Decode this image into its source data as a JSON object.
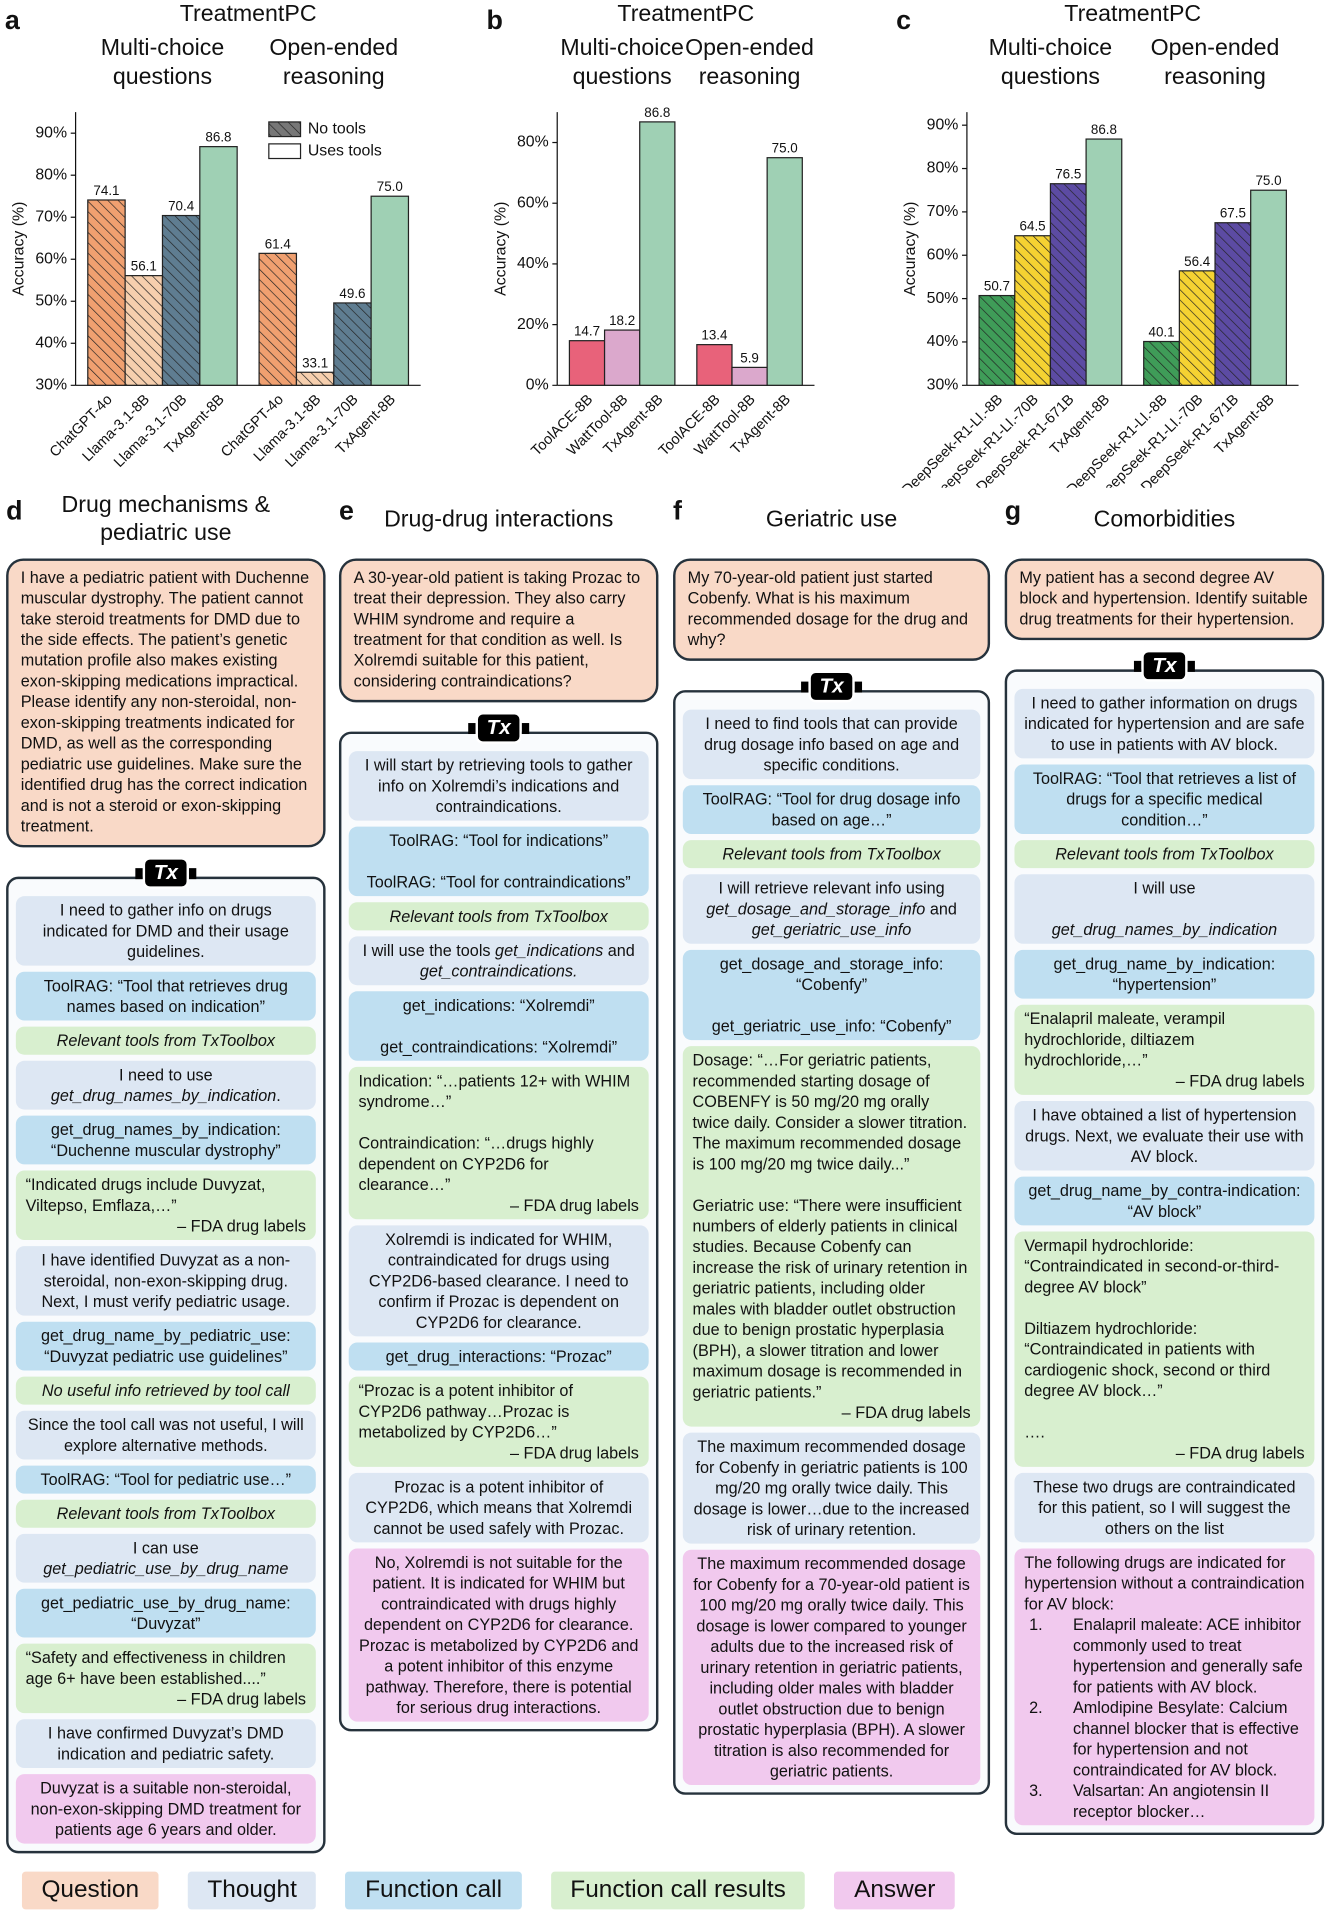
{
  "chart_data": [
    {
      "type": "bar",
      "panel_label": "a",
      "title": "TreatmentPC",
      "ylabel": "Accuracy (%)",
      "ylim": [
        30,
        95
      ],
      "yticks": [
        {
          "value": 30,
          "label": "30%"
        },
        {
          "value": 40,
          "label": "40%"
        },
        {
          "value": 50,
          "label": "50%"
        },
        {
          "value": 60,
          "label": "60%"
        },
        {
          "value": 70,
          "label": "70%"
        },
        {
          "value": 80,
          "label": "80%"
        },
        {
          "value": 90,
          "label": "90%"
        }
      ],
      "groups": [
        {
          "title_lines": [
            "Multi-choice",
            "questions"
          ],
          "categories": [
            "ChatGPT-4o",
            "Llama-3.1-8B",
            "Llama-3.1-70B",
            "TxAgent-8B"
          ],
          "values": [
            74.1,
            56.1,
            70.4,
            86.8
          ],
          "value_labels": [
            "74.1",
            "56.1",
            "70.4",
            "86.8"
          ],
          "colors": [
            "#f0a070",
            "#f6cfae",
            "#5f7d91",
            "#9fd0b4"
          ],
          "hatched": [
            true,
            true,
            true,
            false
          ]
        },
        {
          "title_lines": [
            "Open-ended",
            "reasoning"
          ],
          "categories": [
            "ChatGPT-4o",
            "Llama-3.1-8B",
            "Llama-3.1-70B",
            "TxAgent-8B"
          ],
          "values": [
            61.4,
            33.1,
            49.6,
            75
          ],
          "value_labels": [
            "61.4",
            "33.1",
            "49.6",
            "75.0"
          ],
          "colors": [
            "#f0a070",
            "#f6cfae",
            "#5f7d91",
            "#9fd0b4"
          ],
          "hatched": [
            true,
            true,
            true,
            false
          ]
        }
      ],
      "legend": [
        {
          "name": "No tools",
          "hatched": true
        },
        {
          "name": "Uses tools",
          "hatched": false
        }
      ]
    },
    {
      "type": "bar",
      "panel_label": "b",
      "title": "TreatmentPC",
      "ylabel": "Accuracy (%)",
      "ylim": [
        0,
        90
      ],
      "yticks": [
        {
          "value": 0,
          "label": "0%"
        },
        {
          "value": 20,
          "label": "20%"
        },
        {
          "value": 40,
          "label": "40%"
        },
        {
          "value": 60,
          "label": "60%"
        },
        {
          "value": 80,
          "label": "80%"
        }
      ],
      "groups": [
        {
          "title_lines": [
            "Multi-choice",
            "questions"
          ],
          "categories": [
            "ToolACE-8B",
            "WattTool-8B",
            "TxAgent-8B"
          ],
          "values": [
            14.7,
            18.2,
            86.8
          ],
          "value_labels": [
            "14.7",
            "18.2",
            "86.8"
          ],
          "colors": [
            "#e8627a",
            "#dba8cc",
            "#9fd0b4"
          ],
          "hatched": [
            false,
            false,
            false
          ]
        },
        {
          "title_lines": [
            "Open-ended",
            "reasoning"
          ],
          "categories": [
            "ToolACE-8B",
            "WattTool-8B",
            "TxAgent-8B"
          ],
          "values": [
            13.4,
            5.9,
            75
          ],
          "value_labels": [
            "13.4",
            "5.9",
            "75.0"
          ],
          "colors": [
            "#e8627a",
            "#dba8cc",
            "#9fd0b4"
          ],
          "hatched": [
            false,
            false,
            false
          ]
        }
      ]
    },
    {
      "type": "bar",
      "panel_label": "c",
      "title": "TreatmentPC",
      "ylabel": "Accuracy (%)",
      "ylim": [
        30,
        93
      ],
      "yticks": [
        {
          "value": 30,
          "label": "30%"
        },
        {
          "value": 40,
          "label": "40%"
        },
        {
          "value": 50,
          "label": "50%"
        },
        {
          "value": 60,
          "label": "60%"
        },
        {
          "value": 70,
          "label": "70%"
        },
        {
          "value": 80,
          "label": "80%"
        },
        {
          "value": 90,
          "label": "90%"
        }
      ],
      "groups": [
        {
          "title_lines": [
            "Multi-choice",
            "questions"
          ],
          "categories": [
            "DeepSeek-R1-Ll.-8B",
            "DeepSeek-R1-Ll.-70B",
            "DeepSeek-R1-671B",
            "TxAgent-8B"
          ],
          "values": [
            50.7,
            64.5,
            76.5,
            86.8
          ],
          "value_labels": [
            "50.7",
            "64.5",
            "76.5",
            "86.8"
          ],
          "colors": [
            "#3f9c58",
            "#f5d232",
            "#5c4ba3",
            "#9fd0b4"
          ],
          "hatched": [
            true,
            true,
            true,
            false
          ]
        },
        {
          "title_lines": [
            "Open-ended",
            "reasoning"
          ],
          "categories": [
            "DeepSeek-R1-Ll.-8B",
            "DeepSeek-R1-Ll.-70B",
            "DeepSeek-R1-671B",
            "TxAgent-8B"
          ],
          "values": [
            40.1,
            56.4,
            67.5,
            75
          ],
          "value_labels": [
            "40.1",
            "56.4",
            "67.5",
            "75.0"
          ],
          "colors": [
            "#3f9c58",
            "#f5d232",
            "#5c4ba3",
            "#9fd0b4"
          ],
          "hatched": [
            true,
            true,
            true,
            false
          ]
        }
      ]
    }
  ],
  "logo": "Tx",
  "panels": [
    {
      "label": "d",
      "title": "Drug mechanisms & pediatric use",
      "question": "I have a pediatric patient with Duchenne muscular dystrophy. The patient cannot take steroid treatments for DMD due to the side effects. The patient’s genetic mutation profile also makes existing exon-skipping medications impractical. Please identify any non-steroidal, non-exon-skipping treatments indicated for DMD, as well as the corresponding pediatric use guidelines. Make sure the identified drug has the correct indication and is not a steroid or exon-skipping treatment.",
      "steps": [
        {
          "kind": "thought",
          "paras": [
            "I need to gather info on drugs indicated for DMD and their usage guidelines."
          ]
        },
        {
          "kind": "call",
          "paras": [
            "ToolRAG: “Tool that retrieves drug names based on indication”"
          ]
        },
        {
          "kind": "results",
          "paras": [
            [
              {
                "em": "Relevant tools from TxToolbox"
              }
            ]
          ]
        },
        {
          "kind": "thought",
          "paras": [
            [
              "I need to use ",
              {
                "em": "get_drug_names_by_indication"
              },
              "."
            ]
          ]
        },
        {
          "kind": "call",
          "paras": [
            "get_drug_names_by_indication: “Duchenne muscular dystrophy”"
          ]
        },
        {
          "kind": "results",
          "paras": [
            "“Indicated drugs include Duvyzat, Viltepso, Emflaza,…”"
          ],
          "source": "– FDA drug labels"
        },
        {
          "kind": "thought",
          "paras": [
            "I have identified Duvyzat as a non-steroidal, non-exon-skipping drug. Next, I must verify pediatric usage."
          ]
        },
        {
          "kind": "call",
          "paras": [
            "get_drug_name_by_pediatric_use: “Duvyzat pediatric use guidelines”"
          ]
        },
        {
          "kind": "results",
          "paras": [
            [
              {
                "em": "No useful info retrieved by tool call"
              }
            ]
          ]
        },
        {
          "kind": "thought",
          "paras": [
            "Since the tool call was not useful, I will explore alternative methods."
          ]
        },
        {
          "kind": "call",
          "paras": [
            "ToolRAG: “Tool for pediatric use…”"
          ]
        },
        {
          "kind": "results",
          "paras": [
            [
              {
                "em": "Relevant tools from TxToolbox"
              }
            ]
          ]
        },
        {
          "kind": "thought",
          "paras": [
            [
              "I can use ",
              {
                "em": "get_pediatric_use_by_drug_name"
              }
            ]
          ]
        },
        {
          "kind": "call",
          "paras": [
            "get_pediatric_use_by_drug_name: “Duvyzat”"
          ]
        },
        {
          "kind": "results",
          "paras": [
            "“Safety and effectiveness in children age 6+ have been established....”"
          ],
          "source": "– FDA drug labels"
        },
        {
          "kind": "thought",
          "paras": [
            "I have confirmed Duvyzat’s DMD indication and pediatric safety."
          ]
        },
        {
          "kind": "answer",
          "paras": [
            "Duvyzat is a suitable non-steroidal, non-exon-skipping DMD treatment for patients age 6 years and older."
          ]
        }
      ]
    },
    {
      "label": "e",
      "title": "Drug-drug interactions",
      "question": "A 30-year-old patient is taking Prozac to treat their depression. They also carry WHIM syndrome and require a treatment for that condition as well. Is Xolremdi suitable for this patient, considering contraindications?",
      "steps": [
        {
          "kind": "thought",
          "paras": [
            "I will start by retrieving tools to gather info on Xolremdi’s indications and contraindications."
          ]
        },
        {
          "kind": "call",
          "paras": [
            "ToolRAG: “Tool for indications”",
            "ToolRAG: “Tool for contraindications”"
          ]
        },
        {
          "kind": "results",
          "paras": [
            [
              {
                "em": "Relevant tools from TxToolbox"
              }
            ]
          ]
        },
        {
          "kind": "thought",
          "paras": [
            [
              "I will use the tools ",
              {
                "em": "get_indications"
              },
              " and ",
              {
                "em": "get_contraindications."
              }
            ]
          ]
        },
        {
          "kind": "call",
          "paras": [
            "get_indications: “Xolremdi”",
            "get_contraindications: “Xolremdi”"
          ]
        },
        {
          "kind": "results",
          "paras": [
            "Indication: “…patients 12+ with WHIM syndrome…”",
            "Contraindication: “…drugs highly dependent on CYP2D6 for clearance…”"
          ],
          "source": "– FDA drug labels"
        },
        {
          "kind": "thought",
          "paras": [
            "Xolremdi is indicated for WHIM, contraindicated for drugs using CYP2D6-based clearance. I need to confirm if Prozac is dependent on CYP2D6 for clearance."
          ]
        },
        {
          "kind": "call",
          "paras": [
            "get_drug_interactions: “Prozac”"
          ]
        },
        {
          "kind": "results",
          "paras": [
            "“Prozac is a potent inhibitor of CYP2D6 pathway…Prozac is metabolized by CYP2D6…”"
          ],
          "source": "– FDA drug labels"
        },
        {
          "kind": "thought",
          "paras": [
            "Prozac is a potent inhibitor of CYP2D6, which means that Xolremdi cannot be used safely with Prozac."
          ]
        },
        {
          "kind": "answer",
          "paras": [
            "No, Xolremdi is not suitable for the patient. It is indicated for WHIM but contraindicated with drugs highly dependent on CYP2D6 for clearance. Prozac is metabolized by CYP2D6 and a potent inhibitor of this enzyme pathway. Therefore, there is potential for serious drug interactions."
          ]
        }
      ]
    },
    {
      "label": "f",
      "title": "Geriatric use",
      "question": "My 70-year-old patient just started Cobenfy. What is his maximum recommended dosage for the drug and why?",
      "steps": [
        {
          "kind": "thought",
          "paras": [
            "I need to find tools that can provide drug dosage info based on age and specific conditions."
          ]
        },
        {
          "kind": "call",
          "paras": [
            "ToolRAG: “Tool for drug dosage info based on age…”"
          ]
        },
        {
          "kind": "results",
          "paras": [
            [
              {
                "em": "Relevant tools from TxToolbox"
              }
            ]
          ]
        },
        {
          "kind": "thought",
          "paras": [
            [
              "I will retrieve relevant info using ",
              {
                "em": "get_dosage_and_storage_info"
              },
              " and ",
              {
                "em": "get_geriatric_use_info"
              }
            ]
          ]
        },
        {
          "kind": "call",
          "paras": [
            "get_dosage_and_storage_info: “Cobenfy”",
            "get_geriatric_use_info: “Cobenfy”"
          ]
        },
        {
          "kind": "results",
          "paras": [
            "Dosage: “…For geriatric patients, recommended starting dosage of COBENFY is 50 mg/20 mg orally twice daily. Consider a slower titration. The maximum recommended dosage is 100 mg/20 mg twice daily...”",
            "Geriatric use: “There were insufficient numbers of elderly patients in clinical studies. Because Cobenfy can increase the risk of urinary retention in geriatric patients, including older males with bladder outlet obstruction due to benign prostatic hyperplasia (BPH), a slower titration and lower maximum dosage is recommended in geriatric patients.”"
          ],
          "source": "– FDA drug labels"
        },
        {
          "kind": "thought",
          "paras": [
            "The maximum recommended dosage for Cobenfy in geriatric patients is 100 mg/20 mg orally twice daily. This dosage is lower…due to the increased risk of urinary retention."
          ]
        },
        {
          "kind": "answer",
          "paras": [
            "The maximum recommended dosage for Cobenfy for a 70-year-old patient is 100 mg/20 mg orally twice daily. This dosage is lower compared to younger adults due to the increased risk of urinary retention in geriatric patients, including older males with bladder outlet obstruction due to benign prostatic hyperplasia (BPH). A slower titration is also recommended for geriatric patients."
          ]
        }
      ]
    },
    {
      "label": "g",
      "title": "Comorbidities",
      "question": "My patient has a second degree AV block and hypertension. Identify suitable drug treatments for their hypertension.",
      "steps": [
        {
          "kind": "thought",
          "paras": [
            "I need to gather information on drugs indicated for hypertension and are safe to use in patients with AV block."
          ]
        },
        {
          "kind": "call",
          "paras": [
            "ToolRAG: “Tool that retrieves a list of drugs for a specific medical condition…”"
          ]
        },
        {
          "kind": "results",
          "paras": [
            [
              {
                "em": "Relevant tools from TxToolbox"
              }
            ]
          ]
        },
        {
          "kind": "thought",
          "paras": [
            "I will use",
            [
              {
                "em": "get_drug_names_by_indication"
              }
            ]
          ]
        },
        {
          "kind": "call",
          "paras": [
            "get_drug_name_by_indication: “hypertension”"
          ]
        },
        {
          "kind": "results",
          "paras": [
            "“Enalapril maleate, verampil hydrochloride, diltiazem hydrochloride,…”"
          ],
          "source": "– FDA drug labels"
        },
        {
          "kind": "thought",
          "paras": [
            "I have obtained a list of hypertension drugs. Next, we evaluate their use with AV block."
          ]
        },
        {
          "kind": "call",
          "paras": [
            "get_drug_name_by_contra-indication: “AV block”"
          ]
        },
        {
          "kind": "results",
          "paras": [
            "Vermapil hydrochloride: “Contraindicated in second-or-third-degree AV block”",
            "Diltiazem hydrochloride: “Contraindicated in patients with cardiogenic shock, second or third degree AV block…”",
            "…."
          ],
          "source": "– FDA drug labels"
        },
        {
          "kind": "thought",
          "paras": [
            "These two drugs are contraindicated for this patient, so I will suggest the others on the list"
          ]
        },
        {
          "kind": "answer",
          "paras": [
            "The following drugs are indicated for hypertension without a contraindication for AV block:"
          ],
          "list": [
            {
              "n": "1.",
              "text": "Enalapril maleate: ACE inhibitor commonly used to treat hypertension and generally safe for patients with AV block."
            },
            {
              "n": "2.",
              "text": "Amlodipine Besylate: Calcium channel blocker that is effective for hypertension and not contraindicated for AV block."
            },
            {
              "n": "3.",
              "text": "Valsartan: An angiotensin II receptor blocker…"
            }
          ]
        }
      ]
    }
  ],
  "legend": [
    {
      "kind": "question",
      "name": "Question",
      "color": "#f9d9c7"
    },
    {
      "kind": "thought",
      "name": "Thought",
      "color": "#dde7f3"
    },
    {
      "kind": "call",
      "name": "Function call",
      "color": "#bfdff1"
    },
    {
      "kind": "results",
      "name": "Function call results",
      "color": "#d8efcf"
    },
    {
      "kind": "answer",
      "name": "Answer",
      "color": "#f1c9ee"
    }
  ]
}
